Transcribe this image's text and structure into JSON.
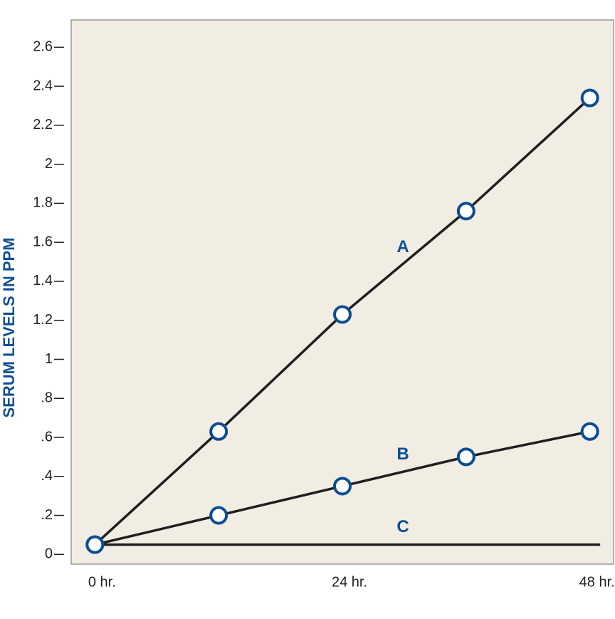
{
  "chart_data": {
    "type": "line",
    "y_label": "SERUM LEVELS IN PPM",
    "x": [
      0,
      12,
      24,
      36,
      48
    ],
    "xlim": [
      -2.3,
      50.3
    ],
    "xticks": [
      {
        "value": 0,
        "label": "0 hr."
      },
      {
        "value": 24,
        "label": "24 hr."
      },
      {
        "value": 48,
        "label": "48 hr."
      }
    ],
    "ylim": [
      -0.05,
      2.74
    ],
    "yticks": [
      0,
      {
        "value": 0.2,
        "label": ".2"
      },
      {
        "value": 0.4,
        "label": ".4"
      },
      {
        "value": 0.6,
        "label": ".6"
      },
      {
        "value": 0.8,
        "label": ".8"
      },
      1,
      1.2,
      1.4,
      1.6,
      1.8,
      2,
      2.2,
      2.4,
      2.6
    ],
    "series": [
      {
        "name": "A",
        "color": "#1f1f1f",
        "marker_color": "#0d4d92",
        "marker": true,
        "values": [
          0.05,
          0.63,
          1.23,
          1.76,
          2.34
        ]
      },
      {
        "name": "B",
        "color": "#1f1f1f",
        "marker_color": "#0d4d92",
        "marker": true,
        "values": [
          0.05,
          0.2,
          0.35,
          0.5,
          0.63
        ]
      },
      {
        "name": "C",
        "color": "#1f1f1f",
        "marker_color": "#0d4d92",
        "marker": false,
        "x": [
          0,
          49
        ],
        "values": [
          0.05,
          0.05
        ]
      }
    ]
  }
}
